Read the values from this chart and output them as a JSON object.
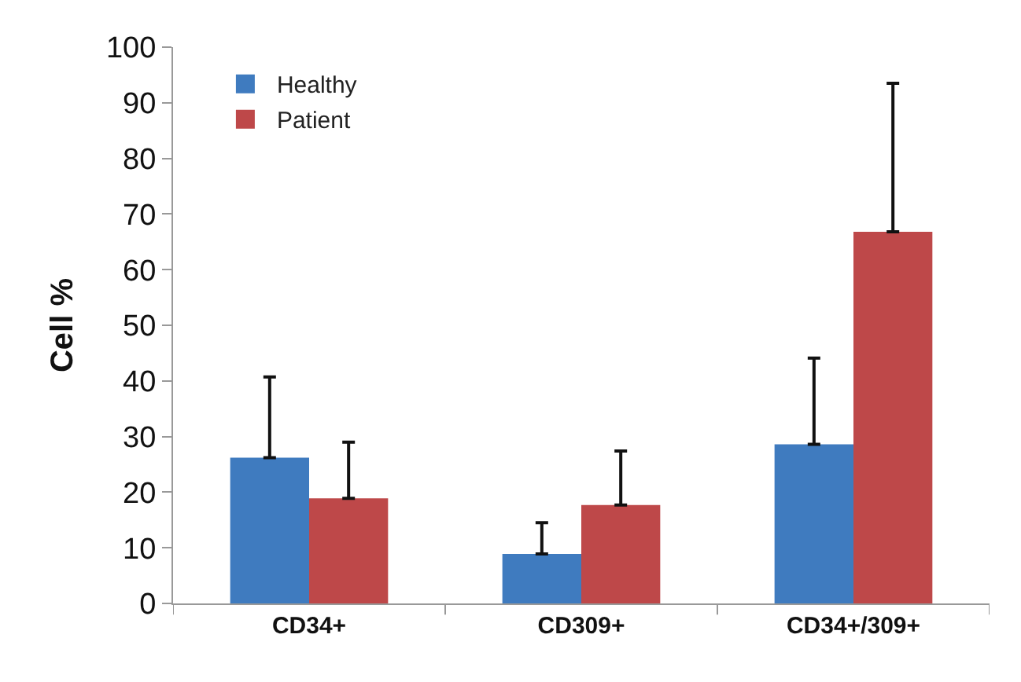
{
  "chart_data": {
    "type": "bar",
    "ylabel": "Cell %",
    "categories": [
      "CD34+",
      "CD309+",
      "CD34+/309+"
    ],
    "series": [
      {
        "name": "Healthy",
        "color": "#3f7bbf",
        "values": [
          26.2,
          8.9,
          28.6
        ],
        "errors": [
          14.5,
          5.6,
          15.5
        ]
      },
      {
        "name": "Patient",
        "color": "#be4849",
        "values": [
          18.9,
          17.7,
          66.8
        ],
        "errors": [
          10.1,
          9.7,
          26.7
        ]
      }
    ],
    "ylim": [
      0,
      100
    ],
    "yticks": [
      0,
      10,
      20,
      30,
      40,
      50,
      60,
      70,
      80,
      90,
      100
    ],
    "grid": false,
    "legend": "top left"
  }
}
